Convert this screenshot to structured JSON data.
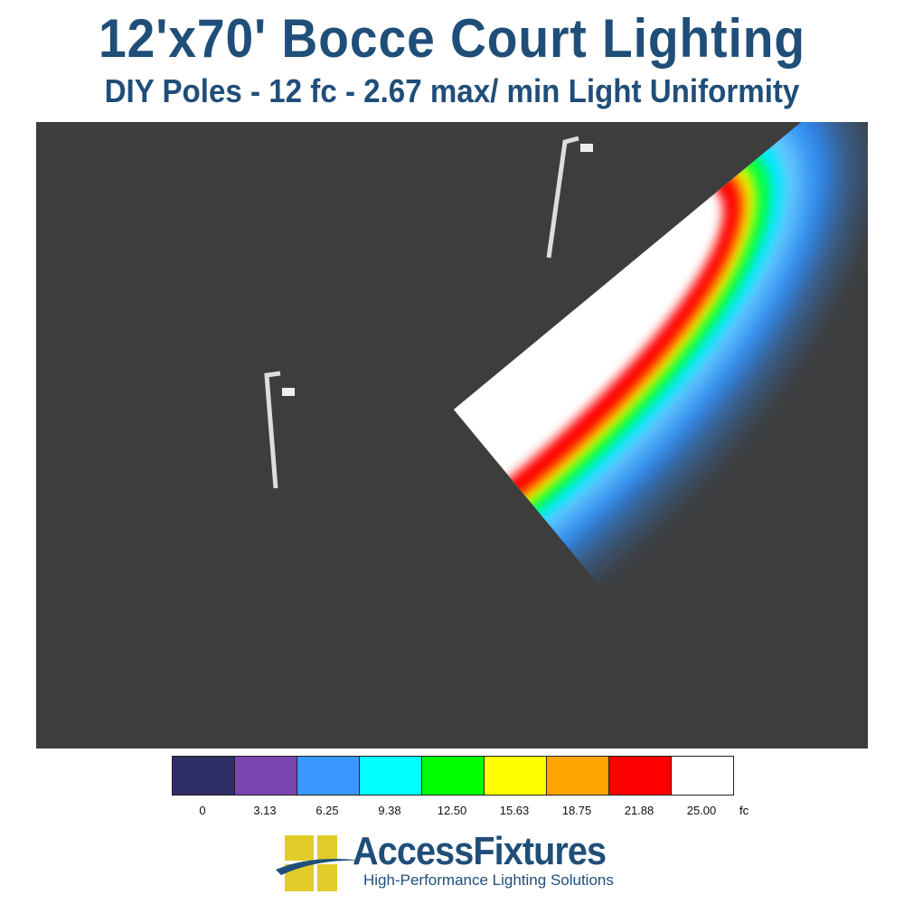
{
  "header": {
    "title": "12'x70' Bocce Court Lighting",
    "subtitle": "DIY Poles - 12 fc - 2.67 max/ min Light Uniformity"
  },
  "chart_data": {
    "type": "heatmap",
    "title": "12'x70' Bocce Court Lighting",
    "subtitle": "DIY Poles - 12 fc - 2.67 max/ min Light Uniformity",
    "unit": "fc",
    "scale": [
      {
        "label": "0",
        "value": 0,
        "color": "#2e2d66"
      },
      {
        "label": "3.13",
        "value": 3.13,
        "color": "#7b45b0"
      },
      {
        "label": "6.25",
        "value": 6.25,
        "color": "#3a96ff"
      },
      {
        "label": "9.38",
        "value": 9.38,
        "color": "#00ffff"
      },
      {
        "label": "12.50",
        "value": 12.5,
        "color": "#00ff00"
      },
      {
        "label": "15.63",
        "value": 15.63,
        "color": "#ffff00"
      },
      {
        "label": "18.75",
        "value": 18.75,
        "color": "#ffa500"
      },
      {
        "label": "21.88",
        "value": 21.88,
        "color": "#ff0000"
      },
      {
        "label": "25.00",
        "value": 25.0,
        "color": "#ffffff"
      }
    ],
    "background_color": "#3d3d3d",
    "poles": 2
  },
  "logo": {
    "brand": "AccessFixtures",
    "tagline": "High-Performance Lighting Solutions",
    "colors": {
      "blue": "#1f4e79",
      "yellow": "#e2cc2a"
    }
  }
}
